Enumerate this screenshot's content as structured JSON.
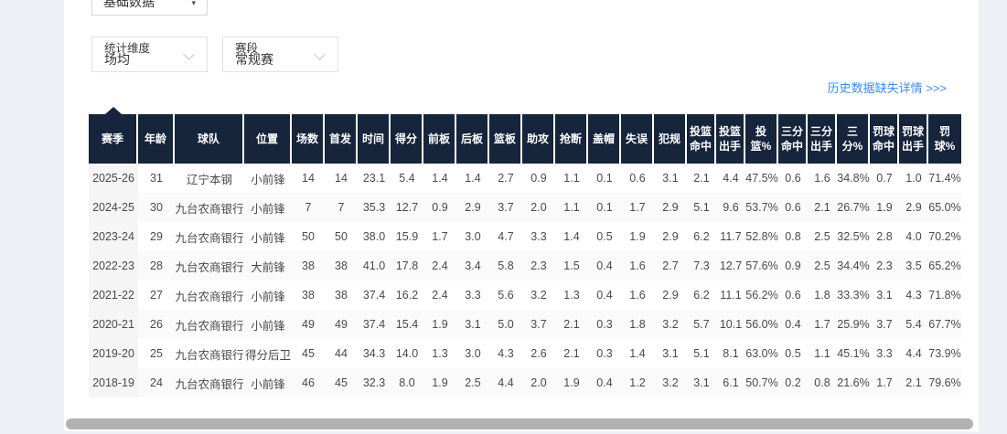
{
  "filters": {
    "dataset_select": {
      "value": "基础数据"
    },
    "dimension_select": {
      "label": "统计维度",
      "value": "场均"
    },
    "stage_select": {
      "label": "赛段",
      "value": "常规赛"
    }
  },
  "links": {
    "history_missing": "历史数据缺失详情 >>>"
  },
  "colors": {
    "header_background": "#16243c",
    "link_blue": "#3d8af2",
    "page_background": "#eef0f5",
    "season_cell_background": "#f5f5f5"
  },
  "table": {
    "columns": [
      "赛季",
      "年龄",
      "球队",
      "位置",
      "场数",
      "首发",
      "时间",
      "得分",
      "前板",
      "后板",
      "篮板",
      "助攻",
      "抢断",
      "盖帽",
      "失误",
      "犯规",
      "投篮命中",
      "投篮出手",
      "投篮%",
      "三分命中",
      "三分出手",
      "三分%",
      "罚球命中",
      "罚球出手",
      "罚球%"
    ],
    "rows": [
      [
        "2025-26",
        "31",
        "辽宁本钢",
        "小前锋",
        "14",
        "14",
        "23.1",
        "5.4",
        "1.4",
        "1.4",
        "2.7",
        "0.9",
        "1.1",
        "0.1",
        "0.6",
        "3.1",
        "2.1",
        "4.4",
        "47.5%",
        "0.6",
        "1.6",
        "34.8%",
        "0.7",
        "1.0",
        "71.4%"
      ],
      [
        "2024-25",
        "30",
        "九台农商银行",
        "小前锋",
        "7",
        "7",
        "35.3",
        "12.7",
        "0.9",
        "2.9",
        "3.7",
        "2.0",
        "1.1",
        "0.1",
        "1.7",
        "2.9",
        "5.1",
        "9.6",
        "53.7%",
        "0.6",
        "2.1",
        "26.7%",
        "1.9",
        "2.9",
        "65.0%"
      ],
      [
        "2023-24",
        "29",
        "九台农商银行",
        "小前锋",
        "50",
        "50",
        "38.0",
        "15.9",
        "1.7",
        "3.0",
        "4.7",
        "3.3",
        "1.4",
        "0.5",
        "1.9",
        "2.9",
        "6.2",
        "11.7",
        "52.8%",
        "0.8",
        "2.5",
        "32.5%",
        "2.8",
        "4.0",
        "70.2%"
      ],
      [
        "2022-23",
        "28",
        "九台农商银行",
        "大前锋",
        "38",
        "38",
        "41.0",
        "17.8",
        "2.4",
        "3.4",
        "5.8",
        "2.3",
        "1.5",
        "0.4",
        "1.6",
        "2.7",
        "7.3",
        "12.7",
        "57.6%",
        "0.9",
        "2.5",
        "34.4%",
        "2.3",
        "3.5",
        "65.2%"
      ],
      [
        "2021-22",
        "27",
        "九台农商银行",
        "小前锋",
        "38",
        "38",
        "37.4",
        "16.2",
        "2.4",
        "3.3",
        "5.6",
        "3.2",
        "1.3",
        "0.4",
        "1.6",
        "2.9",
        "6.2",
        "11.1",
        "56.2%",
        "0.6",
        "1.8",
        "33.3%",
        "3.1",
        "4.3",
        "71.8%"
      ],
      [
        "2020-21",
        "26",
        "九台农商银行",
        "小前锋",
        "49",
        "49",
        "37.4",
        "15.4",
        "1.9",
        "3.1",
        "5.0",
        "3.7",
        "2.1",
        "0.3",
        "1.8",
        "3.2",
        "5.7",
        "10.1",
        "56.0%",
        "0.4",
        "1.7",
        "25.9%",
        "3.7",
        "5.4",
        "67.7%"
      ],
      [
        "2019-20",
        "25",
        "九台农商银行",
        "得分后卫",
        "45",
        "44",
        "34.3",
        "14.0",
        "1.3",
        "3.0",
        "4.3",
        "2.6",
        "2.1",
        "0.3",
        "1.4",
        "3.1",
        "5.1",
        "8.1",
        "63.0%",
        "0.5",
        "1.1",
        "45.1%",
        "3.3",
        "4.4",
        "73.9%"
      ],
      [
        "2018-19",
        "24",
        "九台农商银行",
        "小前锋",
        "46",
        "45",
        "32.3",
        "8.0",
        "1.9",
        "2.5",
        "4.4",
        "2.0",
        "1.9",
        "0.4",
        "1.2",
        "3.2",
        "3.1",
        "6.1",
        "50.7%",
        "0.2",
        "0.8",
        "21.6%",
        "1.7",
        "2.1",
        "79.6%"
      ]
    ]
  }
}
